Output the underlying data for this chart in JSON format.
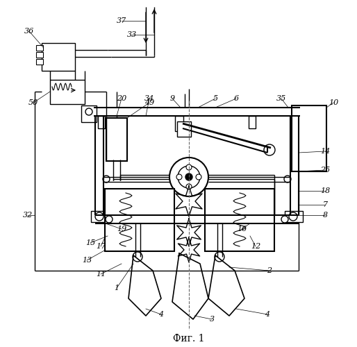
{
  "title": "Фиг. 1",
  "bg_color": "#ffffff",
  "line_color": "#000000",
  "fig_width": 5.14,
  "fig_height": 5.0,
  "dpi": 100
}
